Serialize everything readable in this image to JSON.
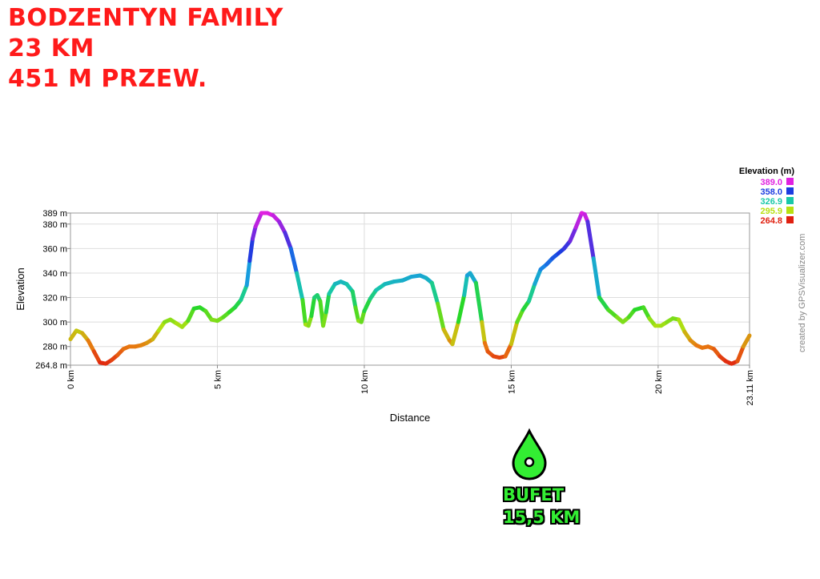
{
  "header": {
    "line1": "BODZENTYN FAMILY",
    "line2": "23 KM",
    "line3": "451 M PRZEW."
  },
  "credit": "created by GPSVisualizer.com",
  "marker": {
    "icon": "drop-pin-icon",
    "label": "BUFET",
    "distance": "15,5 KM",
    "color": "#33ee33"
  },
  "chart_data": {
    "type": "line",
    "xlabel": "Distance",
    "ylabel": "Elevation",
    "xlim": [
      0,
      23.11
    ],
    "ylim": [
      264.8,
      389
    ],
    "xticks": [
      0,
      5,
      10,
      15,
      20,
      23.11
    ],
    "xtick_labels": [
      "0 km",
      "5 km",
      "10 km",
      "15 km",
      "20 km",
      "23.11 km"
    ],
    "yticks": [
      264.8,
      280,
      300,
      320,
      340,
      360,
      380,
      389
    ],
    "ytick_labels": [
      "264.8 m",
      "280 m",
      "300 m",
      "320 m",
      "340 m",
      "360 m",
      "380 m",
      "389 m"
    ],
    "grid": true,
    "legend": {
      "title": "Elevation (m)",
      "placement": "top-right",
      "entries": [
        {
          "label": "389.0",
          "color": "#e020e0"
        },
        {
          "label": "358.0",
          "color": "#1c3ce0"
        },
        {
          "label": "326.9",
          "color": "#18c8a8"
        },
        {
          "label": "295.9",
          "color": "#b8e010"
        },
        {
          "label": "264.8",
          "color": "#e02010"
        }
      ]
    },
    "series": [
      {
        "x": [
          0,
          0.2,
          0.4,
          0.6,
          0.8,
          1.0,
          1.2,
          1.4,
          1.6,
          1.8,
          2.0,
          2.2,
          2.4,
          2.6,
          2.8,
          3.0,
          3.2,
          3.4,
          3.6,
          3.8,
          4.0,
          4.2,
          4.4,
          4.6,
          4.8,
          5.0,
          5.2,
          5.4,
          5.6,
          5.8,
          6.0,
          6.1,
          6.2,
          6.3,
          6.5,
          6.7,
          6.9,
          7.1,
          7.3,
          7.5,
          7.7,
          7.9,
          8.0,
          8.1,
          8.2,
          8.3,
          8.4,
          8.5,
          8.6,
          8.7,
          8.8,
          9.0,
          9.2,
          9.4,
          9.6,
          9.7,
          9.8,
          9.9,
          10.0,
          10.2,
          10.4,
          10.7,
          11.0,
          11.3,
          11.6,
          11.9,
          12.1,
          12.3,
          12.5,
          12.7,
          12.9,
          13.0,
          13.2,
          13.4,
          13.5,
          13.6,
          13.8,
          14.0,
          14.1,
          14.2,
          14.4,
          14.6,
          14.8,
          15.0,
          15.2,
          15.4,
          15.6,
          15.8,
          16.0,
          16.2,
          16.4,
          16.6,
          16.8,
          17.0,
          17.2,
          17.4,
          17.5,
          17.6,
          17.8,
          18.0,
          18.3,
          18.6,
          18.8,
          19.0,
          19.2,
          19.5,
          19.7,
          19.9,
          20.1,
          20.3,
          20.5,
          20.7,
          20.9,
          21.1,
          21.3,
          21.5,
          21.7,
          21.9,
          22.1,
          22.3,
          22.5,
          22.7,
          22.9,
          23.11
        ],
        "y": [
          286,
          293,
          291,
          285,
          276,
          267,
          266,
          269,
          273,
          278,
          280,
          280,
          281,
          283,
          286,
          293,
          300,
          302,
          299,
          296,
          301,
          311,
          312,
          309,
          302,
          301,
          304,
          308,
          312,
          318,
          330,
          350,
          368,
          378,
          389,
          389,
          387,
          382,
          373,
          360,
          340,
          318,
          298,
          297,
          305,
          320,
          322,
          317,
          297,
          308,
          323,
          331,
          333,
          331,
          325,
          312,
          301,
          300,
          309,
          319,
          326,
          331,
          333,
          334,
          337,
          338,
          336,
          332,
          315,
          294,
          285,
          282,
          300,
          322,
          338,
          340,
          332,
          300,
          283,
          276,
          272,
          271,
          272,
          282,
          300,
          310,
          317,
          331,
          343,
          347,
          352,
          356,
          360,
          366,
          377,
          389,
          388,
          382,
          352,
          320,
          310,
          304,
          300,
          304,
          310,
          312,
          303,
          297,
          297,
          300,
          303,
          302,
          292,
          285,
          281,
          279,
          280,
          278,
          272,
          268,
          266,
          268,
          280,
          289
        ]
      }
    ]
  }
}
